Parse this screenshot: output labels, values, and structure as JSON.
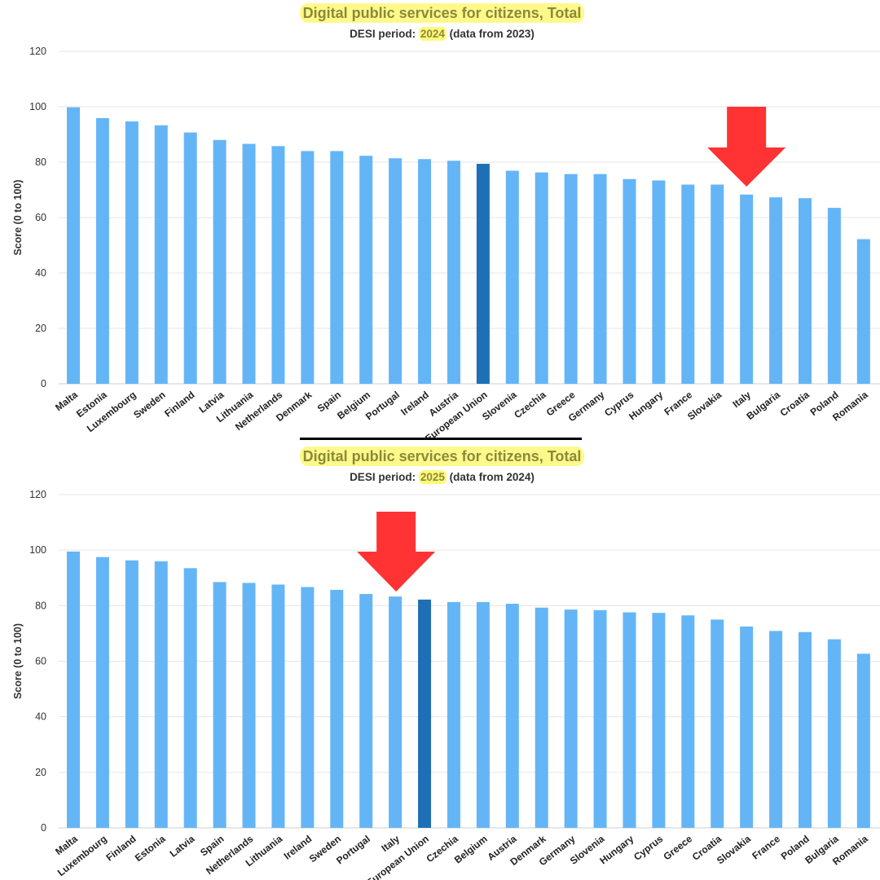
{
  "colors": {
    "bar": "#64b5f6",
    "highlight_bar": "#1f6fb6",
    "arrow": "#ff3333",
    "title_highlight": "#fff764",
    "grid": "#e6e6e6",
    "text": "#333333"
  },
  "chart_data": [
    {
      "type": "bar",
      "title": "Digital public services for citizens, Total",
      "subtitle_prefix": "DESI period: ",
      "subtitle_year": "2024",
      "subtitle_suffix": " (data from 2023)",
      "ylabel": "Score (0 to 100)",
      "ylim": [
        0,
        120
      ],
      "yticks": [
        "0",
        "20",
        "40",
        "60",
        "80",
        "100",
        "120"
      ],
      "grid": true,
      "highlighted_category": "European Union",
      "arrow_marks_category": "Italy",
      "categories": [
        "Malta",
        "Estonia",
        "Luxembourg",
        "Sweden",
        "Finland",
        "Latvia",
        "Lithuania",
        "Netherlands",
        "Denmark",
        "Spain",
        "Belgium",
        "Portugal",
        "Ireland",
        "Austria",
        "European Union",
        "Slovenia",
        "Czechia",
        "Greece",
        "Germany",
        "Cyprus",
        "Hungary",
        "France",
        "Slovakia",
        "Italy",
        "Bulgaria",
        "Croatia",
        "Poland",
        "Romania"
      ],
      "values": [
        99.8,
        95.9,
        94.7,
        93.3,
        90.7,
        88.0,
        86.6,
        85.8,
        84.0,
        84.0,
        82.3,
        81.4,
        81.1,
        80.5,
        79.4,
        76.9,
        76.3,
        75.7,
        75.7,
        73.9,
        73.4,
        71.9,
        71.9,
        68.3,
        67.3,
        67.0,
        63.5,
        52.2
      ]
    },
    {
      "type": "bar",
      "title": "Digital public services for citizens, Total",
      "subtitle_prefix": "DESI period: ",
      "subtitle_year": "2025",
      "subtitle_suffix": " (data from 2024)",
      "ylabel": "Score (0 to 100)",
      "ylim": [
        0,
        120
      ],
      "yticks": [
        "0",
        "20",
        "40",
        "60",
        "80",
        "100",
        "120"
      ],
      "grid": true,
      "highlighted_category": "European Union",
      "arrow_marks_category": "Italy",
      "categories": [
        "Malta",
        "Luxembourg",
        "Finland",
        "Estonia",
        "Latvia",
        "Spain",
        "Netherlands",
        "Lithuania",
        "Ireland",
        "Sweden",
        "Portugal",
        "Italy",
        "European Union",
        "Czechia",
        "Belgium",
        "Austria",
        "Denmark",
        "Germany",
        "Slovenia",
        "Hungary",
        "Cyprus",
        "Greece",
        "Croatia",
        "Slovakia",
        "France",
        "Poland",
        "Bulgaria",
        "Romania"
      ],
      "values": [
        99.5,
        97.5,
        96.3,
        96.0,
        93.5,
        88.5,
        88.2,
        87.6,
        86.7,
        85.7,
        84.2,
        83.3,
        82.2,
        81.3,
        81.3,
        80.7,
        79.3,
        78.6,
        78.4,
        77.6,
        77.4,
        76.5,
        75.0,
        72.5,
        70.9,
        70.5,
        67.9,
        62.7
      ]
    }
  ]
}
